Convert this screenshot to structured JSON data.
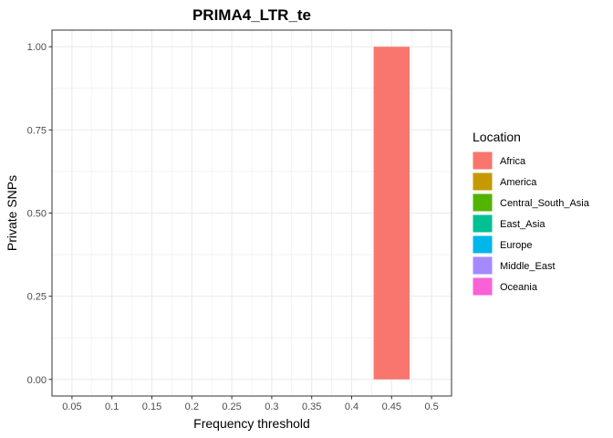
{
  "chart_data": {
    "type": "bar",
    "title": "PRIMA4_LTR_te",
    "xlabel": "Frequency threshold",
    "ylabel": "Private SNPs",
    "x_ticks": [
      "0.05",
      "0.1",
      "0.15",
      "0.2",
      "0.25",
      "0.3",
      "0.35",
      "0.4",
      "0.45",
      "0.5"
    ],
    "y_ticks": [
      "0.00",
      "0.25",
      "0.50",
      "0.75",
      "1.00"
    ],
    "xlim": [
      0.025,
      0.525
    ],
    "ylim": [
      -0.05,
      1.05
    ],
    "grid": true,
    "legend": {
      "title": "Location",
      "placement": "right",
      "entries": [
        {
          "name": "Africa",
          "color": "#F8766D"
        },
        {
          "name": "America",
          "color": "#C49A00"
        },
        {
          "name": "Central_South_Asia",
          "color": "#53B400"
        },
        {
          "name": "East_Asia",
          "color": "#00C094"
        },
        {
          "name": "Europe",
          "color": "#00B6EB"
        },
        {
          "name": "Middle_East",
          "color": "#A58AFF"
        },
        {
          "name": "Oceania",
          "color": "#FB61D7"
        }
      ]
    },
    "bar_width": 0.045,
    "series": [
      {
        "name": "Africa",
        "x": [
          0.45
        ],
        "values": [
          1.0
        ]
      }
    ]
  }
}
